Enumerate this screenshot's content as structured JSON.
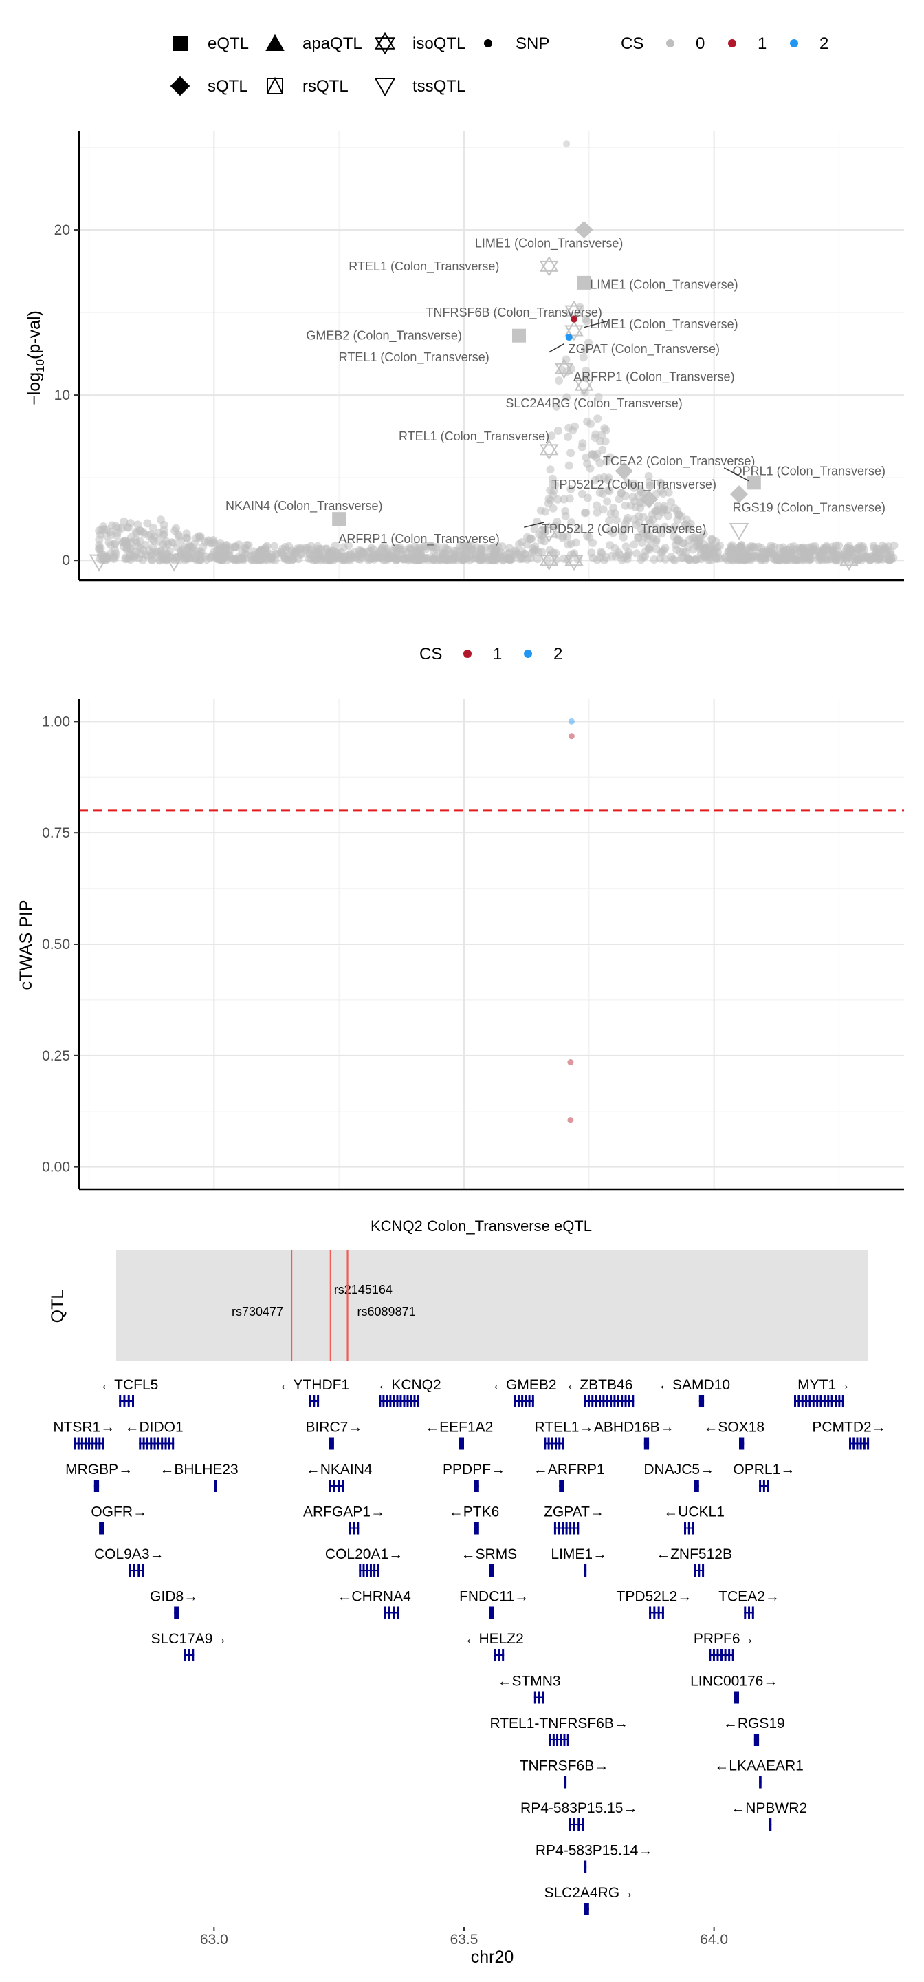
{
  "top_legend": {
    "shapes": [
      {
        "label": "eQTL",
        "icon": "square"
      },
      {
        "label": "apaQTL",
        "icon": "triangle-up"
      },
      {
        "label": "isoQTL",
        "icon": "star-of-david"
      },
      {
        "label": "SNP",
        "icon": "small-dot"
      },
      {
        "label": "sQTL",
        "icon": "diamond"
      },
      {
        "label": "rsQTL",
        "icon": "square-with-triangle"
      },
      {
        "label": "tssQTL",
        "icon": "triangle-down"
      }
    ],
    "cs_title": "CS",
    "cs_entries": [
      {
        "label": "0",
        "color": "#bebebe"
      },
      {
        "label": "1",
        "color": "#b2182b"
      },
      {
        "label": "2",
        "color": "#2196f3"
      }
    ]
  },
  "mid_legend": {
    "cs_title": "CS",
    "cs_entries": [
      {
        "label": "1",
        "color": "#b2182b"
      },
      {
        "label": "2",
        "color": "#2196f3"
      }
    ]
  },
  "chart_data": [
    {
      "type": "scatter",
      "ylabel_main": "−log",
      "ylabel_sub": "10",
      "ylabel_rest": "(p-val)",
      "xlim": [
        62.73,
        64.38
      ],
      "ylim": [
        -1.2,
        26.0
      ],
      "yticks": [
        0,
        10,
        20
      ],
      "grid": true,
      "background_color": "#bebebe",
      "highlight_points": [
        {
          "x": 63.72,
          "y": 14.6,
          "color": "#b2182b"
        },
        {
          "x": 63.71,
          "y": 13.5,
          "color": "#2196f3"
        }
      ],
      "qtl_points": [
        {
          "x": 63.74,
          "y": 20.0,
          "shape": "diamond"
        },
        {
          "x": 63.67,
          "y": 17.8,
          "shape": "star-of-david"
        },
        {
          "x": 63.74,
          "y": 16.8,
          "shape": "square"
        },
        {
          "x": 63.72,
          "y": 15.1,
          "shape": "star-of-david"
        },
        {
          "x": 63.61,
          "y": 13.6,
          "shape": "square"
        },
        {
          "x": 63.72,
          "y": 13.9,
          "shape": "star-of-david"
        },
        {
          "x": 63.7,
          "y": 11.6,
          "shape": "star-of-david"
        },
        {
          "x": 63.74,
          "y": 10.6,
          "shape": "star-of-david"
        },
        {
          "x": 63.67,
          "y": 6.7,
          "shape": "star-of-david"
        },
        {
          "x": 63.82,
          "y": 5.4,
          "shape": "diamond"
        },
        {
          "x": 64.08,
          "y": 4.7,
          "shape": "square"
        },
        {
          "x": 64.05,
          "y": 4.0,
          "shape": "diamond"
        },
        {
          "x": 63.87,
          "y": 3.7,
          "shape": "diamond"
        },
        {
          "x": 63.25,
          "y": 2.5,
          "shape": "square"
        },
        {
          "x": 64.05,
          "y": 1.8,
          "shape": "triangle-down"
        },
        {
          "x": 63.67,
          "y": 1.7,
          "shape": "star-of-david"
        },
        {
          "x": 63.72,
          "y": 0.0,
          "shape": "star-of-david"
        },
        {
          "x": 63.67,
          "y": 0.0,
          "shape": "star-of-david"
        },
        {
          "x": 64.27,
          "y": 0.0,
          "shape": "star-of-david"
        },
        {
          "x": 62.92,
          "y": -0.1,
          "shape": "triangle-down"
        },
        {
          "x": 62.77,
          "y": -0.1,
          "shape": "triangle-down"
        }
      ],
      "annotations": [
        {
          "text": "LIME1 (Colon_Transverse)",
          "x": 63.67,
          "y": 19.2
        },
        {
          "text": "RTEL1 (Colon_Transverse)",
          "x": 63.42,
          "y": 17.8
        },
        {
          "text": "LIME1 (Colon_Transverse)",
          "x": 63.9,
          "y": 16.7
        },
        {
          "text": "TNFRSF6B (Colon_Transverse)",
          "x": 63.6,
          "y": 15.0
        },
        {
          "text": "LIME1 (Colon_Transverse)",
          "x": 63.9,
          "y": 14.3
        },
        {
          "text": "GMEB2 (Colon_Transverse)",
          "x": 63.34,
          "y": 13.6
        },
        {
          "text": "ZGPAT (Colon_Transverse)",
          "x": 63.86,
          "y": 12.8
        },
        {
          "text": "RTEL1 (Colon_Transverse)",
          "x": 63.4,
          "y": 12.3
        },
        {
          "text": "ARFRP1 (Colon_Transverse)",
          "x": 63.88,
          "y": 11.1
        },
        {
          "text": "SLC2A4RG (Colon_Transverse)",
          "x": 63.76,
          "y": 9.5
        },
        {
          "text": "RTEL1 (Colon_Transverse)",
          "x": 63.52,
          "y": 7.5
        },
        {
          "text": "TCEA2 (Colon_Transverse)",
          "x": 63.93,
          "y": 6.0
        },
        {
          "text": "OPRL1 (Colon_Transverse)",
          "x": 64.19,
          "y": 5.4
        },
        {
          "text": "TPD52L2 (Colon_Transverse)",
          "x": 63.84,
          "y": 4.6
        },
        {
          "text": "NKAIN4 (Colon_Transverse)",
          "x": 63.18,
          "y": 3.3
        },
        {
          "text": "RGS19 (Colon_Transverse)",
          "x": 64.19,
          "y": 3.2
        },
        {
          "text": "TPD52L2 (Colon_Transverse)",
          "x": 63.82,
          "y": 1.9
        },
        {
          "text": "ARFRP1 (Colon_Transverse)",
          "x": 63.41,
          "y": 1.3
        }
      ]
    },
    {
      "type": "scatter",
      "ylabel": "cTWAS PIP",
      "xlim": [
        62.73,
        64.38
      ],
      "ylim": [
        -0.05,
        1.05
      ],
      "yticks": [
        0.0,
        0.25,
        0.5,
        0.75,
        1.0
      ],
      "ytick_labels": [
        "0.00",
        "0.25",
        "0.50",
        "0.75",
        "1.00"
      ],
      "grid": true,
      "threshold": 0.8,
      "threshold_color": "#e31a1c",
      "points": [
        {
          "x": 63.715,
          "y": 1.0,
          "color": "#2196f3"
        },
        {
          "x": 63.715,
          "y": 0.967,
          "color": "#b2182b"
        },
        {
          "x": 63.713,
          "y": 0.235,
          "color": "#b2182b"
        },
        {
          "x": 63.713,
          "y": 0.105,
          "color": "#b2182b"
        }
      ]
    },
    {
      "type": "gene-track",
      "qtl_panel_title": "KCNQ2 Colon_Transverse eQTL",
      "qtl_row_label": "QTL",
      "xlabel": "chr20",
      "xlim": [
        62.73,
        64.38
      ],
      "xticks": [
        63.0,
        63.5,
        64.0
      ],
      "xtick_labels": [
        "63.0",
        "63.5",
        "64.0"
      ],
      "snps": [
        {
          "name": "rs730477",
          "x": 63.155
        },
        {
          "name": "rs2145164",
          "x": 63.233
        },
        {
          "name": "rs6089871",
          "x": 63.267
        }
      ],
      "genes": [
        {
          "label": "←TCFL5",
          "row": 0,
          "x": 62.83,
          "start": 62.81,
          "end": 62.84
        },
        {
          "label": "←YTHDF1",
          "row": 0,
          "x": 63.2,
          "start": 63.19,
          "end": 63.21
        },
        {
          "label": "←KCNQ2",
          "row": 0,
          "x": 63.39,
          "start": 63.33,
          "end": 63.41
        },
        {
          "label": "←GMEB2",
          "row": 0,
          "x": 63.62,
          "start": 63.6,
          "end": 63.64
        },
        {
          "label": "←ZBTB46",
          "row": 0,
          "x": 63.77,
          "start": 63.74,
          "end": 63.84
        },
        {
          "label": "←SAMD10",
          "row": 0,
          "x": 63.96,
          "start": 63.97,
          "end": 63.98
        },
        {
          "label": "MYT1→",
          "row": 0,
          "x": 64.22,
          "start": 64.16,
          "end": 64.26
        },
        {
          "label": "NTSR1→",
          "row": 1,
          "x": 62.74,
          "start": 62.72,
          "end": 62.78
        },
        {
          "label": "←DIDO1",
          "row": 1,
          "x": 62.88,
          "start": 62.85,
          "end": 62.92
        },
        {
          "label": "BIRC7→",
          "row": 1,
          "x": 63.24,
          "start": 63.23,
          "end": 63.24
        },
        {
          "label": "←EEF1A2",
          "row": 1,
          "x": 63.49,
          "start": 63.49,
          "end": 63.5
        },
        {
          "label": "RTEL1→",
          "row": 1,
          "x": 63.7,
          "start": 63.66,
          "end": 63.7
        },
        {
          "label": "ABHD16B→",
          "row": 1,
          "x": 63.84,
          "start": 63.86,
          "end": 63.87
        },
        {
          "label": "←SOX18",
          "row": 1,
          "x": 64.04,
          "start": 64.05,
          "end": 64.06
        },
        {
          "label": "PCMTD2→",
          "row": 1,
          "x": 64.27,
          "start": 64.27,
          "end": 64.31
        },
        {
          "label": "MRGBP→",
          "row": 2,
          "x": 62.77,
          "start": 62.76,
          "end": 62.77
        },
        {
          "label": "←BHLHE23",
          "row": 2,
          "x": 62.97,
          "start": 63.0,
          "end": 63.005
        },
        {
          "label": "←NKAIN4",
          "row": 2,
          "x": 63.25,
          "start": 63.23,
          "end": 63.26
        },
        {
          "label": "PPDPF→",
          "row": 2,
          "x": 63.52,
          "start": 63.52,
          "end": 63.53
        },
        {
          "label": "←ARFRP1",
          "row": 2,
          "x": 63.71,
          "start": 63.69,
          "end": 63.7
        },
        {
          "label": "DNAJC5→",
          "row": 2,
          "x": 63.93,
          "start": 63.96,
          "end": 63.97
        },
        {
          "label": "OPRL1→",
          "row": 2,
          "x": 64.1,
          "start": 64.09,
          "end": 64.11
        },
        {
          "label": "OGFR→",
          "row": 3,
          "x": 62.81,
          "start": 62.77,
          "end": 62.78
        },
        {
          "label": "ARFGAP1→",
          "row": 3,
          "x": 63.26,
          "start": 63.27,
          "end": 63.29
        },
        {
          "label": "←PTK6",
          "row": 3,
          "x": 63.52,
          "start": 63.52,
          "end": 63.53
        },
        {
          "label": "ZGPAT→",
          "row": 3,
          "x": 63.72,
          "start": 63.68,
          "end": 63.73
        },
        {
          "label": "←UCKL1",
          "row": 3,
          "x": 63.96,
          "start": 63.94,
          "end": 63.96
        },
        {
          "label": "COL9A3→",
          "row": 4,
          "x": 62.83,
          "start": 62.83,
          "end": 62.86
        },
        {
          "label": "COL20A1→",
          "row": 4,
          "x": 63.3,
          "start": 63.29,
          "end": 63.33
        },
        {
          "label": "←SRMS",
          "row": 4,
          "x": 63.55,
          "start": 63.55,
          "end": 63.56
        },
        {
          "label": "LIME1→",
          "row": 4,
          "x": 63.73,
          "start": 63.74,
          "end": 63.745
        },
        {
          "label": "←ZNF512B",
          "row": 4,
          "x": 63.96,
          "start": 63.96,
          "end": 63.98
        },
        {
          "label": "GID8→",
          "row": 5,
          "x": 62.92,
          "start": 62.92,
          "end": 62.93
        },
        {
          "label": "←CHRNA4",
          "row": 5,
          "x": 63.32,
          "start": 63.34,
          "end": 63.37
        },
        {
          "label": "FNDC11→",
          "row": 5,
          "x": 63.56,
          "start": 63.55,
          "end": 63.56
        },
        {
          "label": "TPD52L2→",
          "row": 5,
          "x": 63.88,
          "start": 63.87,
          "end": 63.9
        },
        {
          "label": "TCEA2→",
          "row": 5,
          "x": 64.07,
          "start": 64.06,
          "end": 64.08
        },
        {
          "label": "SLC17A9→",
          "row": 6,
          "x": 62.95,
          "start": 62.94,
          "end": 62.96
        },
        {
          "label": "←HELZ2",
          "row": 6,
          "x": 63.56,
          "start": 63.56,
          "end": 63.58
        },
        {
          "label": "PRPF6→",
          "row": 6,
          "x": 64.02,
          "start": 63.99,
          "end": 64.04
        },
        {
          "label": "←STMN3",
          "row": 7,
          "x": 63.63,
          "start": 63.64,
          "end": 63.66
        },
        {
          "label": "LINC00176→",
          "row": 7,
          "x": 64.04,
          "start": 64.04,
          "end": 64.05
        },
        {
          "label": "RTEL1-TNFRSF6B→",
          "row": 8,
          "x": 63.69,
          "start": 63.67,
          "end": 63.71
        },
        {
          "label": "←RGS19",
          "row": 8,
          "x": 64.08,
          "start": 64.08,
          "end": 64.09
        },
        {
          "label": "TNFRSF6B→",
          "row": 9,
          "x": 63.7,
          "start": 63.7,
          "end": 63.705
        },
        {
          "label": "←LKAAEAR1",
          "row": 9,
          "x": 64.09,
          "start": 64.09,
          "end": 64.095
        },
        {
          "label": "RP4-583P15.15→",
          "row": 10,
          "x": 63.73,
          "start": 63.71,
          "end": 63.74
        },
        {
          "label": "←NPBWR2",
          "row": 10,
          "x": 64.11,
          "start": 64.11,
          "end": 64.115
        },
        {
          "label": "RP4-583P15.14→",
          "row": 11,
          "x": 63.76,
          "start": 63.74,
          "end": 63.745
        },
        {
          "label": "SLC2A4RG→",
          "row": 12,
          "x": 63.75,
          "start": 63.74,
          "end": 63.75
        }
      ]
    }
  ]
}
